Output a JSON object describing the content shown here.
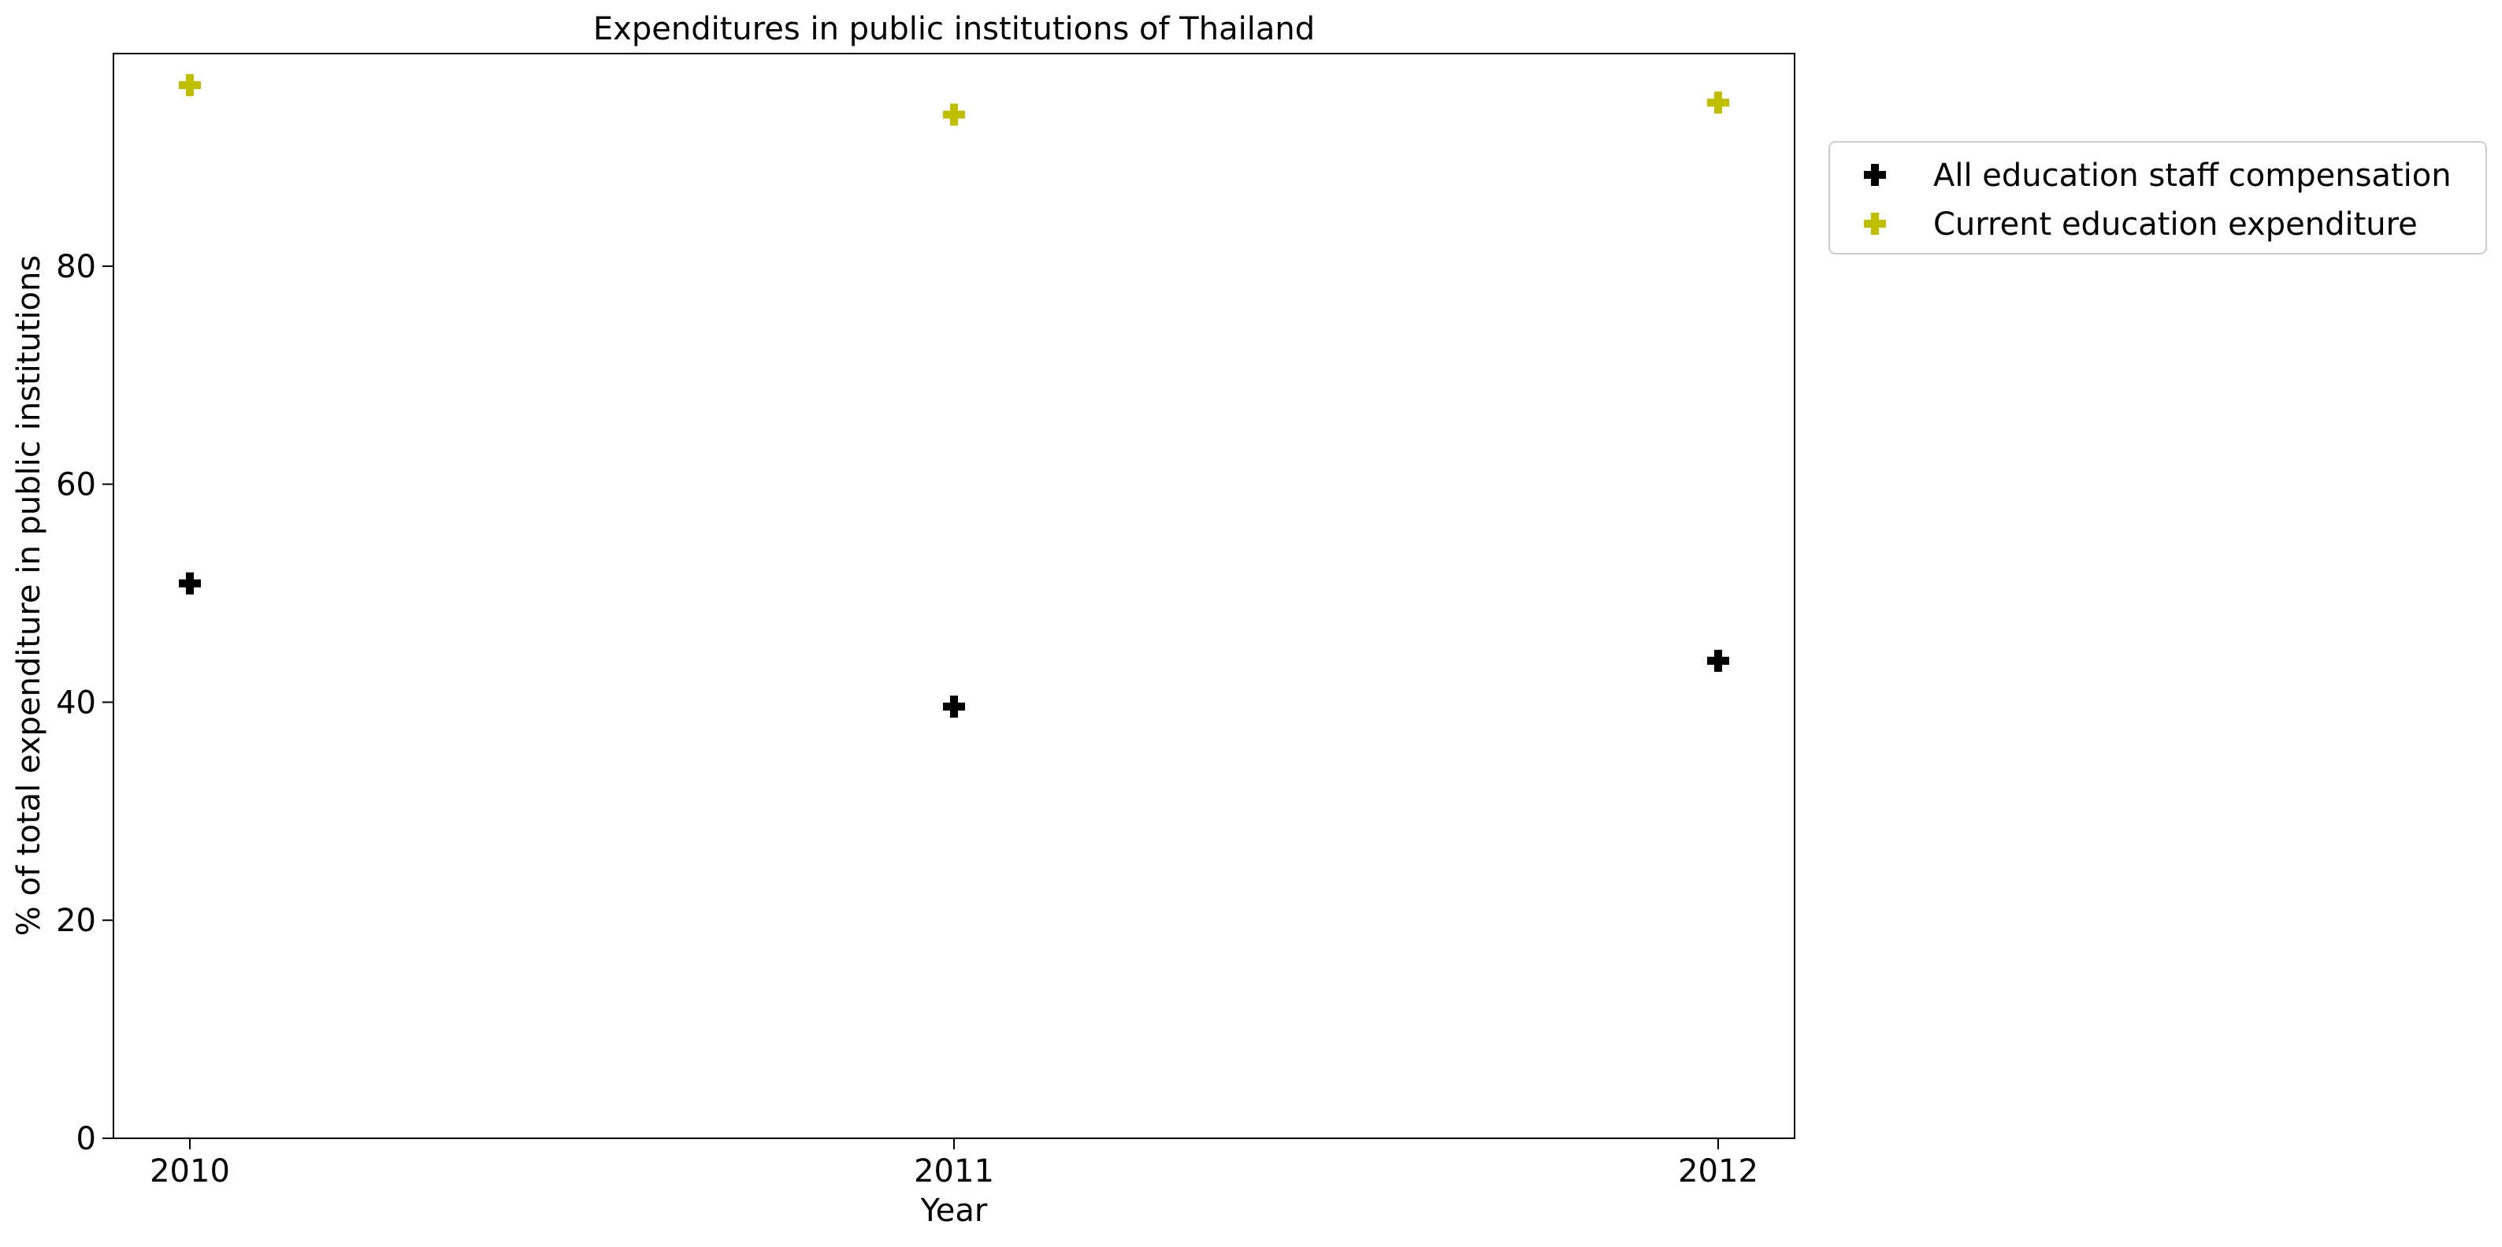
{
  "chart_data": {
    "type": "scatter",
    "title": "Expenditures in public institutions of Thailand",
    "xlabel": "Year",
    "ylabel": "% of total expenditure in public institutions",
    "x": [
      2010,
      2011,
      2012
    ],
    "x_tick_labels": [
      "2010",
      "2011",
      "2012"
    ],
    "xlim": [
      2009.9,
      2012.1
    ],
    "ylim": [
      0,
      99.5
    ],
    "y_ticks": [
      0,
      20,
      40,
      60,
      80
    ],
    "y_tick_labels": [
      "0",
      "20",
      "40",
      "60",
      "80"
    ],
    "grid": false,
    "legend_position": "outside-upper-right",
    "marker": "plus-filled",
    "series": [
      {
        "name": "All education staff compensation",
        "color": "#000000",
        "values": [
          50.9,
          39.6,
          43.8
        ]
      },
      {
        "name": "Current education expenditure",
        "color": "#bfbf00",
        "values": [
          96.6,
          93.9,
          95.0
        ]
      }
    ]
  }
}
